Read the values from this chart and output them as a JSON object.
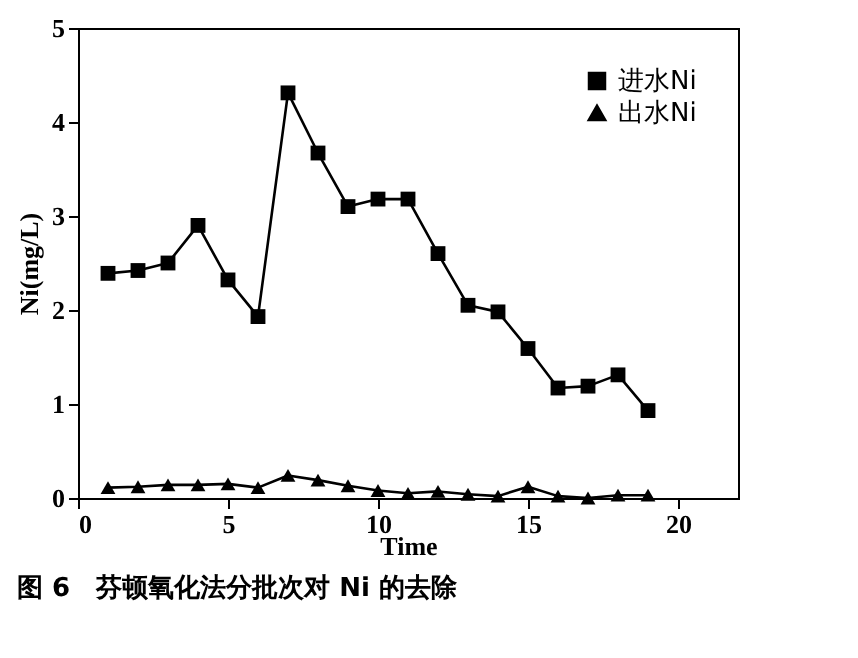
{
  "chart_data": {
    "type": "line",
    "title": "图 6　芬顿氧化法分批次对 Ni 的去除",
    "xlabel": "Time",
    "ylabel": "Ni(mg/L)",
    "x": [
      1,
      2,
      3,
      4,
      5,
      6,
      7,
      8,
      9,
      10,
      11,
      12,
      13,
      14,
      15,
      16,
      17,
      18,
      19
    ],
    "series": [
      {
        "name": "进水Ni",
        "color": "#000000",
        "marker": "square",
        "values": [
          2.39,
          2.42,
          2.5,
          2.9,
          2.32,
          1.93,
          4.31,
          3.67,
          3.1,
          3.18,
          3.18,
          2.6,
          2.05,
          1.98,
          1.59,
          1.17,
          1.19,
          1.31,
          0.93
        ]
      },
      {
        "name": "出水Ni",
        "color": "#000000",
        "marker": "triangle",
        "values": [
          0.11,
          0.12,
          0.14,
          0.14,
          0.15,
          0.11,
          0.24,
          0.19,
          0.13,
          0.08,
          0.05,
          0.07,
          0.04,
          0.02,
          0.12,
          0.02,
          0.0,
          0.03,
          0.03
        ]
      }
    ],
    "xlim": [
      0,
      22
    ],
    "xticks": [
      0,
      5,
      10,
      15,
      20
    ],
    "ylim": [
      0,
      5
    ],
    "yticks": [
      0,
      1,
      2,
      3,
      4,
      5
    ],
    "legend": "top right",
    "line_style": "solid",
    "grid": false
  }
}
